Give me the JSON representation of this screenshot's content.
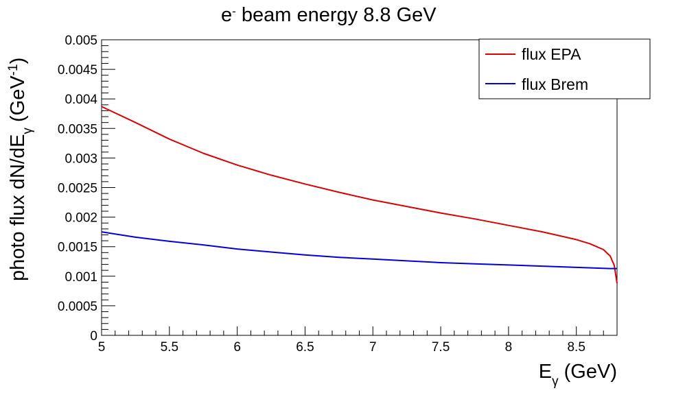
{
  "chart_data": {
    "type": "line",
    "title": {
      "base": "e",
      "sup": "-",
      "rest": " beam energy 8.8 GeV"
    },
    "xlabel": {
      "base": "E",
      "sub": "γ",
      "rest": " (GeV)"
    },
    "ylabel": {
      "pre": "photo flux dN/dE",
      "sub": "γ",
      "mid": "  (GeV",
      "sup": "-1",
      "post": ")"
    },
    "xlim": [
      5,
      8.8
    ],
    "ylim": [
      0,
      0.005
    ],
    "x_ticks": [
      "5",
      "5.5",
      "6",
      "6.5",
      "7",
      "7.5",
      "8",
      "8.5"
    ],
    "y_ticks": [
      "0",
      "0.0005",
      "0.001",
      "0.0015",
      "0.002",
      "0.0025",
      "0.003",
      "0.0035",
      "0.004",
      "0.0045",
      "0.005"
    ],
    "legend_position": "top-right",
    "series": [
      {
        "name": "flux EPA",
        "color": "#dd0000",
        "x": [
          5.0,
          5.25,
          5.5,
          5.75,
          6.0,
          6.25,
          6.5,
          6.75,
          7.0,
          7.25,
          7.5,
          7.75,
          8.0,
          8.25,
          8.5,
          8.6,
          8.7,
          8.75,
          8.78,
          8.8
        ],
        "y": [
          0.00387,
          0.0036,
          0.00332,
          0.00308,
          0.00288,
          0.00271,
          0.00256,
          0.00242,
          0.00229,
          0.00218,
          0.00207,
          0.00197,
          0.00186,
          0.00175,
          0.00162,
          0.00155,
          0.00145,
          0.00134,
          0.00118,
          0.00088
        ]
      },
      {
        "name": "flux Brem",
        "color": "#0000dd",
        "x": [
          5.0,
          5.25,
          5.5,
          5.75,
          6.0,
          6.25,
          6.5,
          6.75,
          7.0,
          7.25,
          7.5,
          7.75,
          8.0,
          8.25,
          8.5,
          8.75,
          8.8
        ],
        "y": [
          0.00175,
          0.00166,
          0.00159,
          0.00153,
          0.00146,
          0.00141,
          0.00136,
          0.00132,
          0.00129,
          0.00126,
          0.00123,
          0.00121,
          0.00119,
          0.00117,
          0.00115,
          0.00113,
          0.00113
        ]
      }
    ]
  }
}
